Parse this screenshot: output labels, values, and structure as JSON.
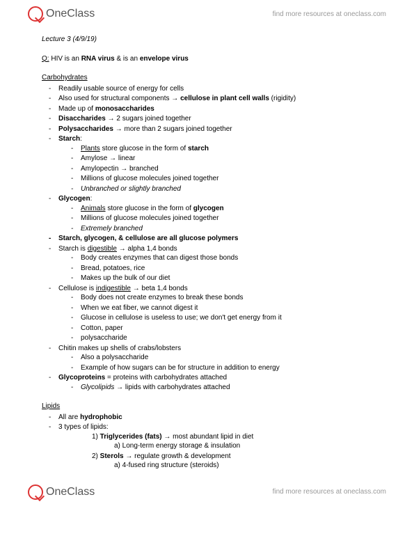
{
  "header": {
    "logo_text": "OneClass",
    "resources_link": "find more resources at oneclass.com"
  },
  "footer": {
    "logo_text": "OneClass",
    "resources_link": "find more resources at oneclass.com"
  },
  "lecture": {
    "title": "Lecture 3 (4/9/19)",
    "q_label": "Q:",
    "q_prefix": " HIV is an ",
    "q_bold1": "RNA virus",
    "q_mid": " & is an ",
    "q_bold2": "envelope virus"
  },
  "carbs": {
    "heading": "Carbohydrates",
    "i1": "Readily usable source of energy for cells",
    "i2a": "Also used for structural components → ",
    "i2b": "cellulose in plant cell walls",
    "i2c": " (rigidity)",
    "i3a": "Made up of ",
    "i3b": "monosaccharides",
    "i4a": "Disaccharides",
    "i4b": " → 2 sugars joined together",
    "i5a": "Polysaccharides",
    "i5b": " → more than 2 sugars joined together",
    "starch": {
      "label": "Starch",
      "colon": ":",
      "s1a": "Plants",
      "s1b": " store glucose in the form of ",
      "s1c": "starch",
      "s2": "Amylose → linear",
      "s3": "Amylopectin → branched",
      "s4": "Millions of glucose molecules joined together",
      "s5": "Unbranched or slightly branched"
    },
    "glycogen": {
      "label": "Glycogen",
      "colon": ":",
      "g1a": "Animals",
      "g1b": " store glucose in the  form  of ",
      "g1c": "glycogen",
      "g2": "Millions of glucose molecules joined together",
      "g3": "Extremely branched"
    },
    "polymers": "Starch, glycogen, & cellulose are all glucose polymers",
    "starch_dig": {
      "a": "Starch is ",
      "b": "digestible",
      "c": " → alpha 1,4 bonds",
      "d1": "Body creates enzymes that can digest those bonds",
      "d2": "Bread, potatoes, rice",
      "d3": "Makes up the bulk of our diet"
    },
    "cellulose": {
      "a": "Cellulose is ",
      "b": "indigestible",
      "c": " → beta 1,4 bonds",
      "d1": "Body does not create enzymes to break these bonds",
      "d2": "When we eat fiber, we cannot digest it",
      "d3": "Glucose in cellulose is useless to use; we don't get energy from it",
      "d4": "Cotton, paper",
      "d5": "polysaccharide"
    },
    "chitin": {
      "a": "Chitin makes up shells of crabs/lobsters",
      "b": "Also a polysaccharide",
      "c": "Example of how sugars can be for structure in addition to energy"
    },
    "glyco": {
      "a": "Glycoproteins",
      "b": " = proteins with carbohydrates attached",
      "c": "Glycolipids",
      "d": " → lipids with carbohydrates attached"
    }
  },
  "lipids": {
    "heading": "Lipids",
    "i1a": "All are ",
    "i1b": "hydrophobic",
    "i2": "3 types of lipids:",
    "t1num": "1)   ",
    "t1a": "Triglycerides (fats)",
    "t1b": " → most abundant lipid in diet",
    "t1_la": "a)   ",
    "t1_l": "Long-term energy storage & insulation",
    "t2num": "2)   ",
    "t2a": "Sterols",
    "t2b": " → regulate growth & development",
    "t2_la": "a)   ",
    "t2_l": "4-fused ring structure (steroids)"
  }
}
